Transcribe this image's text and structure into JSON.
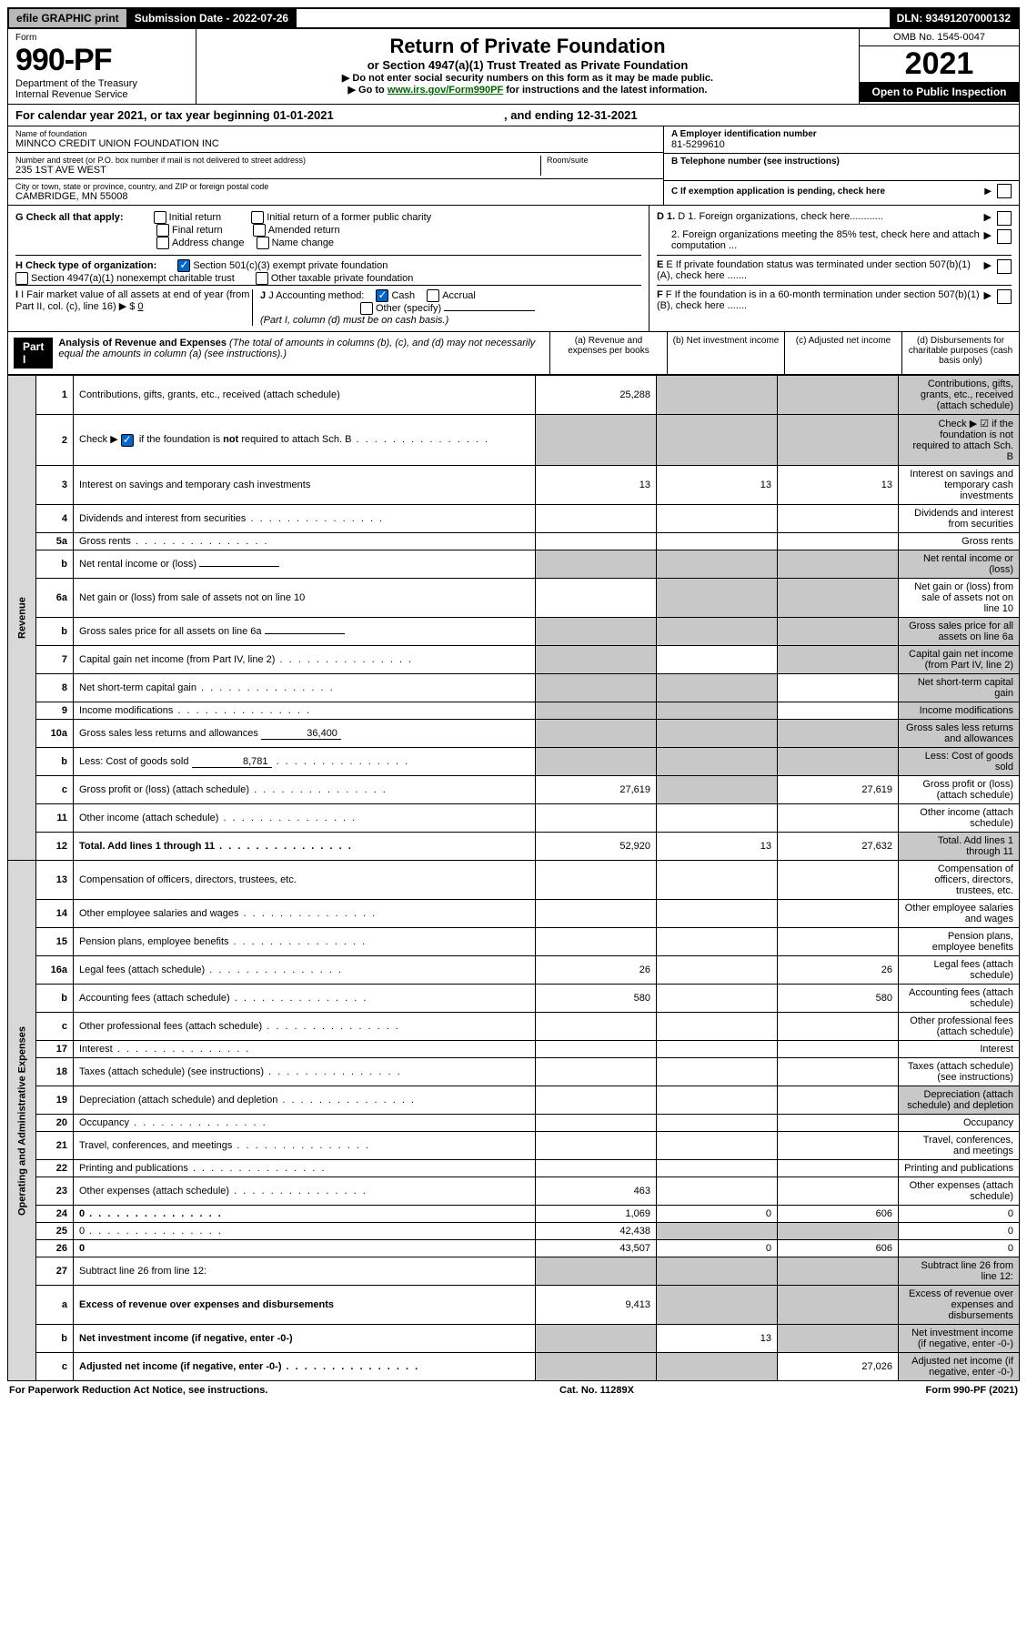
{
  "topbar": {
    "efile": "efile GRAPHIC print",
    "sub_date_label": "Submission Date - 2022-07-26",
    "dln": "DLN: 93491207000132"
  },
  "header": {
    "form_label": "Form",
    "form_no": "990-PF",
    "dept1": "Department of the Treasury",
    "dept2": "Internal Revenue Service",
    "title": "Return of Private Foundation",
    "subtitle": "or Section 4947(a)(1) Trust Treated as Private Foundation",
    "instr1": "▶ Do not enter social security numbers on this form as it may be made public.",
    "instr2_pre": "▶ Go to ",
    "instr2_link": "www.irs.gov/Form990PF",
    "instr2_post": " for instructions and the latest information.",
    "omb": "OMB No. 1545-0047",
    "year": "2021",
    "open": "Open to Public Inspection"
  },
  "cal_year": {
    "pre": "For calendar year 2021, or tax year beginning 01-01-2021",
    "mid": ", and ending 12-31-2021"
  },
  "info": {
    "name_lbl": "Name of foundation",
    "name_val": "MINNCO CREDIT UNION FOUNDATION INC",
    "addr_lbl": "Number and street (or P.O. box number if mail is not delivered to street address)",
    "addr_val": "235 1ST AVE WEST",
    "room_lbl": "Room/suite",
    "city_lbl": "City or town, state or province, country, and ZIP or foreign postal code",
    "city_val": "CAMBRIDGE, MN  55008",
    "a_lbl": "A Employer identification number",
    "a_val": "81-5299610",
    "b_lbl": "B Telephone number (see instructions)",
    "c_lbl": "C If exemption application is pending, check here",
    "g_lbl": "G Check all that apply:",
    "g_opts": [
      "Initial return",
      "Initial return of a former public charity",
      "Final return",
      "Amended return",
      "Address change",
      "Name change"
    ],
    "h_lbl": "H Check type of organization:",
    "h_opt1": "Section 501(c)(3) exempt private foundation",
    "h_opt2": "Section 4947(a)(1) nonexempt charitable trust",
    "h_opt3": "Other taxable private foundation",
    "i_lbl": "I Fair market value of all assets at end of year (from Part II, col. (c), line 16) ▶ $",
    "i_val": "0",
    "j_lbl": "J Accounting method:",
    "j_cash": "Cash",
    "j_accrual": "Accrual",
    "j_other": "Other (specify)",
    "j_note": "(Part I, column (d) must be on cash basis.)",
    "d1": "D 1. Foreign organizations, check here............",
    "d2": "2. Foreign organizations meeting the 85% test, check here and attach computation ...",
    "e": "E  If private foundation status was terminated under section 507(b)(1)(A), check here .......",
    "f": "F  If the foundation is in a 60-month termination under section 507(b)(1)(B), check here .......",
    "arrow": "▶"
  },
  "part1": {
    "label": "Part I",
    "title": "Analysis of Revenue and Expenses",
    "note": " (The total of amounts in columns (b), (c), and (d) may not necessarily equal the amounts in column (a) (see instructions).)",
    "col_a": "(a)   Revenue and expenses per books",
    "col_b": "(b)   Net investment income",
    "col_c": "(c)   Adjusted net income",
    "col_d": "(d)   Disbursements for charitable purposes (cash basis only)"
  },
  "vert_labels": {
    "revenue": "Revenue",
    "expenses": "Operating and Administrative Expenses"
  },
  "rows": [
    {
      "n": "1",
      "d": "Contributions, gifts, grants, etc., received (attach schedule)",
      "a": "25,288",
      "b_shade": true,
      "c_shade": true,
      "d_shade": true
    },
    {
      "n": "2",
      "d": "Check ▶ ☑ if the foundation is not required to attach Sch. B",
      "dots": true,
      "a_shade": true,
      "b_shade": true,
      "c_shade": true,
      "d_shade": true
    },
    {
      "n": "3",
      "d": "Interest on savings and temporary cash investments",
      "a": "13",
      "b": "13",
      "c": "13"
    },
    {
      "n": "4",
      "d": "Dividends and interest from securities",
      "dots": true
    },
    {
      "n": "5a",
      "d": "Gross rents",
      "dots": true
    },
    {
      "n": "b",
      "d": "Net rental income or (loss)",
      "inline": "",
      "a_shade": true,
      "b_shade": true,
      "c_shade": true,
      "d_shade": true
    },
    {
      "n": "6a",
      "d": "Net gain or (loss) from sale of assets not on line 10",
      "b_shade": true,
      "c_shade": true
    },
    {
      "n": "b",
      "d": "Gross sales price for all assets on line 6a",
      "inline": "",
      "a_shade": true,
      "b_shade": true,
      "c_shade": true,
      "d_shade": true
    },
    {
      "n": "7",
      "d": "Capital gain net income (from Part IV, line 2)",
      "dots": true,
      "a_shade": true,
      "c_shade": true,
      "d_shade": true
    },
    {
      "n": "8",
      "d": "Net short-term capital gain",
      "dots": true,
      "a_shade": true,
      "b_shade": true,
      "d_shade": true
    },
    {
      "n": "9",
      "d": "Income modifications",
      "dots": true,
      "a_shade": true,
      "b_shade": true,
      "d_shade": true
    },
    {
      "n": "10a",
      "d": "Gross sales less returns and allowances",
      "inline": "36,400",
      "a_shade": true,
      "b_shade": true,
      "c_shade": true,
      "d_shade": true
    },
    {
      "n": "b",
      "d": "Less: Cost of goods sold",
      "inline": "8,781",
      "dots": true,
      "a_shade": true,
      "b_shade": true,
      "c_shade": true,
      "d_shade": true
    },
    {
      "n": "c",
      "d": "Gross profit or (loss) (attach schedule)",
      "dots": true,
      "a": "27,619",
      "b_shade": true,
      "c": "27,619"
    },
    {
      "n": "11",
      "d": "Other income (attach schedule)",
      "dots": true
    },
    {
      "n": "12",
      "d": "Total. Add lines 1 through 11",
      "dots": true,
      "bold": true,
      "a": "52,920",
      "b": "13",
      "c": "27,632",
      "d_shade": true
    }
  ],
  "rows_exp": [
    {
      "n": "13",
      "d": "Compensation of officers, directors, trustees, etc."
    },
    {
      "n": "14",
      "d": "Other employee salaries and wages",
      "dots": true
    },
    {
      "n": "15",
      "d": "Pension plans, employee benefits",
      "dots": true
    },
    {
      "n": "16a",
      "d": "Legal fees (attach schedule)",
      "dots": true,
      "a": "26",
      "c": "26"
    },
    {
      "n": "b",
      "d": "Accounting fees (attach schedule)",
      "dots": true,
      "a": "580",
      "c": "580"
    },
    {
      "n": "c",
      "d": "Other professional fees (attach schedule)",
      "dots": true
    },
    {
      "n": "17",
      "d": "Interest",
      "dots": true
    },
    {
      "n": "18",
      "d": "Taxes (attach schedule) (see instructions)",
      "dots": true
    },
    {
      "n": "19",
      "d": "Depreciation (attach schedule) and depletion",
      "dots": true,
      "d_shade": true
    },
    {
      "n": "20",
      "d": "Occupancy",
      "dots": true
    },
    {
      "n": "21",
      "d": "Travel, conferences, and meetings",
      "dots": true
    },
    {
      "n": "22",
      "d": "Printing and publications",
      "dots": true
    },
    {
      "n": "23",
      "d": "Other expenses (attach schedule)",
      "dots": true,
      "a": "463"
    },
    {
      "n": "24",
      "d": "0",
      "dots": true,
      "bold": true,
      "a": "1,069",
      "b": "0",
      "c": "606"
    },
    {
      "n": "25",
      "d": "0",
      "dots": true,
      "a": "42,438",
      "b_shade": true,
      "c_shade": true
    },
    {
      "n": "26",
      "d": "0",
      "bold": true,
      "a": "43,507",
      "b": "0",
      "c": "606"
    },
    {
      "n": "27",
      "d": "Subtract line 26 from line 12:",
      "a_shade": true,
      "b_shade": true,
      "c_shade": true,
      "d_shade": true
    },
    {
      "n": "a",
      "d": "Excess of revenue over expenses and disbursements",
      "bold": true,
      "a": "9,413",
      "b_shade": true,
      "c_shade": true,
      "d_shade": true
    },
    {
      "n": "b",
      "d": "Net investment income (if negative, enter -0-)",
      "bold": true,
      "a_shade": true,
      "b": "13",
      "c_shade": true,
      "d_shade": true
    },
    {
      "n": "c",
      "d": "Adjusted net income (if negative, enter -0-)",
      "bold": true,
      "dots": true,
      "a_shade": true,
      "b_shade": true,
      "c": "27,026",
      "d_shade": true
    }
  ],
  "rows2_check_html": "Check ▶ ",
  "rows2_check_post": " if the foundation is <b>not</b> required to attach Sch. B",
  "footer": {
    "left": "For Paperwork Reduction Act Notice, see instructions.",
    "mid": "Cat. No. 11289X",
    "right": "Form 990-PF (2021)"
  }
}
